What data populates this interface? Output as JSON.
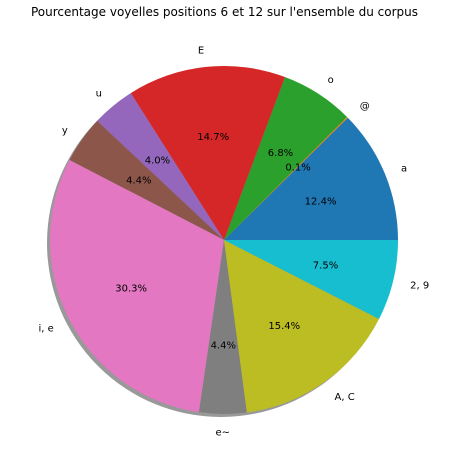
{
  "chart_data": {
    "type": "pie",
    "title": "Pourcentage voyelles positions 6 et 12 sur l'ensemble du corpus",
    "start_angle_deg": 0,
    "direction": "counterclockwise",
    "shadow": true,
    "slices": [
      {
        "label": "a",
        "value": 12.4,
        "pct_label": "12.4%",
        "color": "#1f77b4"
      },
      {
        "label": "@",
        "value": 0.1,
        "pct_label": "0.1%",
        "color": "#ff7f0e"
      },
      {
        "label": "o",
        "value": 6.8,
        "pct_label": "6.8%",
        "color": "#2ca02c"
      },
      {
        "label": "E",
        "value": 14.7,
        "pct_label": "14.7%",
        "color": "#d62728"
      },
      {
        "label": "u",
        "value": 4.0,
        "pct_label": "4.0%",
        "color": "#9467bd"
      },
      {
        "label": "y",
        "value": 4.4,
        "pct_label": "4.4%",
        "color": "#8c564b"
      },
      {
        "label": "i, e",
        "value": 30.3,
        "pct_label": "30.3%",
        "color": "#e377c2"
      },
      {
        "label": "e~",
        "value": 4.4,
        "pct_label": "4.4%",
        "color": "#7f7f7f"
      },
      {
        "label": "A, C",
        "value": 15.4,
        "pct_label": "15.4%",
        "color": "#bcbd22"
      },
      {
        "label": "2, 9",
        "value": 7.5,
        "pct_label": "7.5%",
        "color": "#17becf"
      }
    ]
  }
}
